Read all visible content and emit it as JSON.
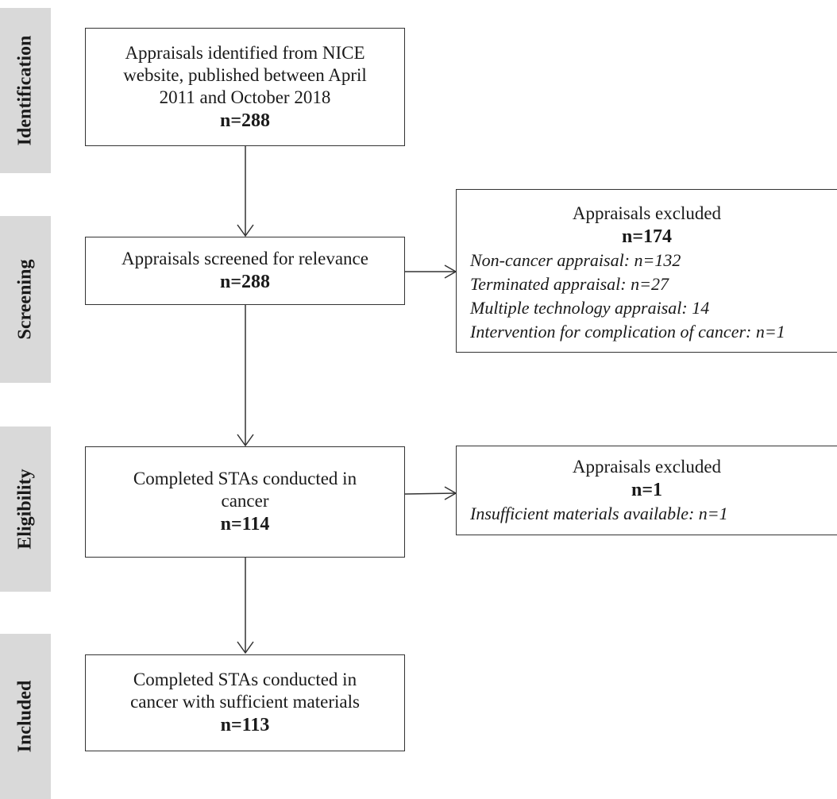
{
  "stages": [
    {
      "key": "identification",
      "label": "Identification"
    },
    {
      "key": "screening",
      "label": "Screening"
    },
    {
      "key": "eligibility",
      "label": "Eligibility"
    },
    {
      "key": "included",
      "label": "Included"
    }
  ],
  "boxes": {
    "identified": {
      "lines": [
        "Appraisals identified from NICE",
        "website, published between April",
        "2011 and October 2018"
      ],
      "count": "n=288"
    },
    "screened": {
      "lines": [
        "Appraisals screened for relevance"
      ],
      "count": "n=288"
    },
    "excluded_screening": {
      "title": "Appraisals excluded",
      "count": "n=174",
      "reasons": [
        "Non-cancer appraisal: n=132",
        "Terminated appraisal: n=27",
        "Multiple technology appraisal: 14",
        "Intervention for complication of cancer: n=1"
      ]
    },
    "eligible": {
      "lines": [
        "Completed STAs conducted in",
        "cancer"
      ],
      "count": "n=114"
    },
    "excluded_eligibility": {
      "title": "Appraisals excluded",
      "count": "n=1",
      "reasons": [
        "Insufficient materials available: n=1"
      ]
    },
    "included": {
      "lines": [
        "Completed STAs conducted in",
        "cancer with sufficient materials"
      ],
      "count": "n=113"
    }
  }
}
